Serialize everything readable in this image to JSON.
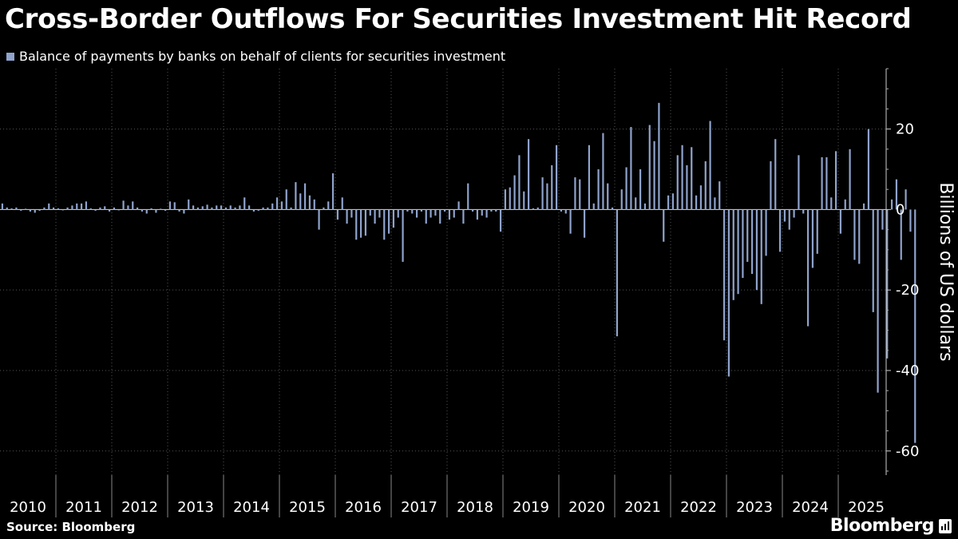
{
  "title": "Cross-Border Outflows For Securities Investment Hit Record",
  "source": "Source: Bloomberg",
  "brand": "Bloomberg",
  "colors": {
    "bar": "#8fa3cc",
    "background": "#000000",
    "grid": "#555555",
    "text": "#ffffff"
  },
  "chart_data": {
    "type": "bar",
    "title": "Cross-Border Outflows For Securities Investment Hit Record",
    "series_name": "Balance of payments by banks on behalf of clients for securities investment",
    "ylabel": "Billions of US dollars",
    "xlabel": "",
    "ylim": [
      -66,
      35
    ],
    "yticks": [
      20,
      0,
      -20,
      -40,
      -60
    ],
    "years": [
      "2010",
      "2011",
      "2012",
      "2013",
      "2014",
      "2015",
      "2016",
      "2017",
      "2018",
      "2019",
      "2020",
      "2021",
      "2022",
      "2023",
      "2024",
      "2025"
    ],
    "start": "2010-01",
    "frequency": "monthly",
    "values": [
      1.5,
      0.5,
      0.3,
      0.5,
      -0.3,
      0.2,
      -0.5,
      -0.8,
      -0.3,
      0.5,
      1.5,
      0.5,
      0.3,
      -0.2,
      0.5,
      1.0,
      1.5,
      1.5,
      2.0,
      0.3,
      -0.3,
      0.5,
      0.8,
      -0.5,
      0.5,
      -0.2,
      2.2,
      1.0,
      2.0,
      0.5,
      -0.5,
      -1.0,
      0.3,
      -0.8,
      0.2,
      -0.3,
      2.0,
      1.8,
      -0.5,
      -1.0,
      2.5,
      1.0,
      0.5,
      0.8,
      1.2,
      0.5,
      1.0,
      1.0,
      0.5,
      1.0,
      0.5,
      1.0,
      3.0,
      1.0,
      -0.5,
      -0.3,
      0.5,
      0.5,
      1.5,
      3.0,
      2.0,
      5.0,
      0.5,
      6.8,
      4.0,
      6.5,
      3.5,
      2.5,
      -5.0,
      0.5,
      2.0,
      9.0,
      -2.5,
      3.0,
      -3.5,
      -2.0,
      -7.5,
      -7.0,
      -6.5,
      -1.5,
      -3.5,
      -2.0,
      -7.5,
      -6.0,
      -4.5,
      -2.0,
      -13.0,
      -0.5,
      -1.0,
      -2.0,
      -0.5,
      -3.5,
      -2.0,
      -1.5,
      -3.5,
      -0.5,
      -2.5,
      -2.0,
      2.0,
      -3.5,
      6.5,
      -0.5,
      -2.5,
      -1.5,
      -2.0,
      -0.5,
      -0.5,
      -5.5,
      5.0,
      5.5,
      8.5,
      13.5,
      4.5,
      17.5,
      0.3,
      0.5,
      8.0,
      6.5,
      11.0,
      16.0,
      -0.5,
      -1.0,
      -6.0,
      8.0,
      7.5,
      -7.0,
      16.0,
      1.5,
      10.0,
      19.0,
      6.5,
      0.5,
      -31.5,
      5.0,
      10.5,
      20.5,
      3.0,
      10.0,
      1.5,
      21.0,
      17.0,
      26.5,
      -8.0,
      3.5,
      4.0,
      13.5,
      16.0,
      11.0,
      15.5,
      3.5,
      6.0,
      12.0,
      22.0,
      3.0,
      7.0,
      -32.5,
      -41.5,
      -22.5,
      -21.0,
      -17.0,
      -13.0,
      -16.0,
      -20.0,
      -23.5,
      -11.5,
      12.0,
      17.5,
      -10.5,
      -3.0,
      -5.0,
      -2.0,
      13.5,
      -1.0,
      -29.0,
      -14.5,
      -11.0,
      13.0,
      13.0,
      3.0,
      14.5,
      -6.0,
      2.5,
      15.0,
      -12.5,
      -13.5,
      1.5,
      20.0,
      -25.5,
      -45.5,
      -5.0,
      -37.0,
      2.5,
      7.5,
      -12.5,
      5.0,
      -5.5,
      -58.0
    ]
  }
}
